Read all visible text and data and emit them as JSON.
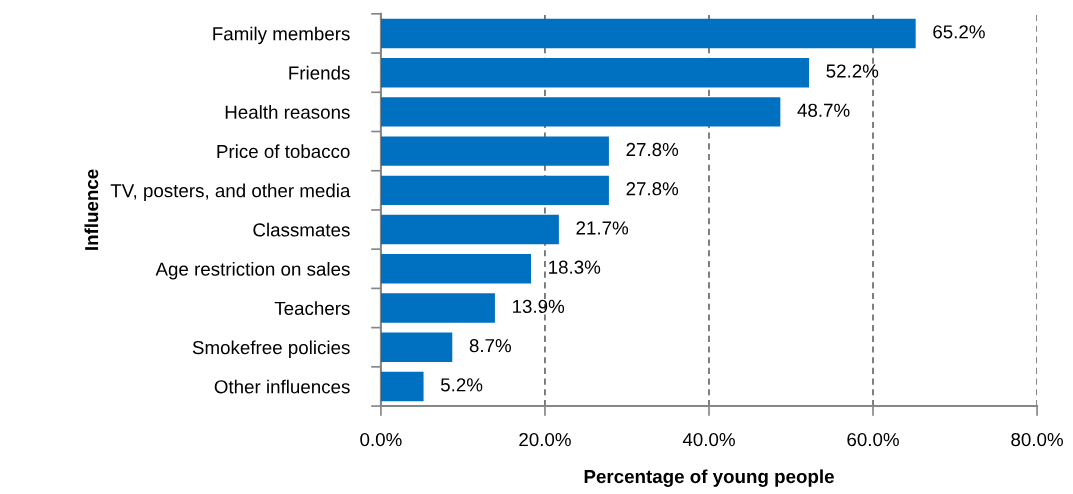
{
  "chart_data": {
    "type": "bar",
    "orientation": "horizontal",
    "categories": [
      "Family members",
      "Friends",
      "Health reasons",
      "Price of tobacco",
      "TV, posters, and other media",
      "Classmates",
      "Age restriction on sales",
      "Teachers",
      "Smokefree policies",
      "Other influences"
    ],
    "values": [
      65.2,
      52.2,
      48.7,
      27.8,
      27.8,
      21.7,
      18.3,
      13.9,
      8.7,
      5.2
    ],
    "value_labels": [
      "65.2%",
      "52.2%",
      "48.7%",
      "27.8%",
      "27.8%",
      "21.7%",
      "18.3%",
      "13.9%",
      "8.7%",
      "5.2%"
    ],
    "color": "#0070c0",
    "xlim": [
      0,
      80
    ],
    "xticks": [
      {
        "value": 0,
        "label": "0.0%"
      },
      {
        "value": 20,
        "label": "20.0%"
      },
      {
        "value": 40,
        "label": "40.0%"
      },
      {
        "value": 60,
        "label": "60.0%"
      },
      {
        "value": 80,
        "label": "80.0%"
      }
    ],
    "xlabel": "Percentage of young people",
    "ylabel": "Influence",
    "grid": "x",
    "legend": false
  }
}
